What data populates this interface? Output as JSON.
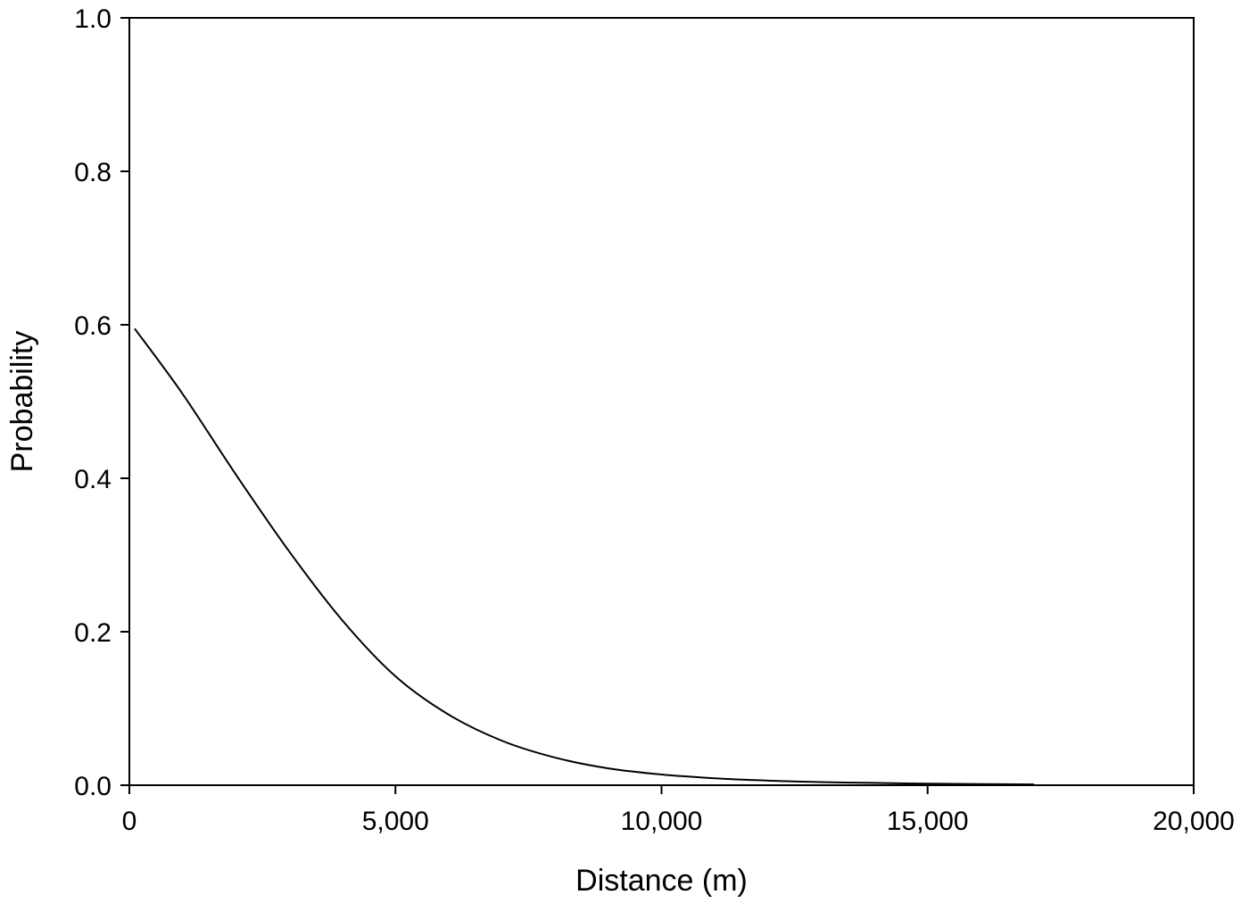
{
  "chart_data": {
    "type": "line",
    "title": "",
    "xlabel": "Distance (m)",
    "ylabel": "Probability",
    "xlim": [
      0,
      20000
    ],
    "ylim": [
      0,
      1.0
    ],
    "grid": false,
    "legend": "none",
    "x_ticks": [
      {
        "value": 0,
        "label": "0"
      },
      {
        "value": 5000,
        "label": "5,000"
      },
      {
        "value": 10000,
        "label": "10,000"
      },
      {
        "value": 15000,
        "label": "15,000"
      },
      {
        "value": 20000,
        "label": "20,000"
      }
    ],
    "y_ticks": [
      {
        "value": 0,
        "label": "0.0"
      },
      {
        "value": 0.2,
        "label": "0.2"
      },
      {
        "value": 0.4,
        "label": "0.4"
      },
      {
        "value": 0.6,
        "label": "0.6"
      },
      {
        "value": 0.8,
        "label": "0.8"
      },
      {
        "value": 1.0,
        "label": "1.0"
      }
    ],
    "series": [
      {
        "color": "#000000",
        "x": [
          100,
          1000,
          2000,
          3000,
          4000,
          5000,
          6000,
          7000,
          8000,
          9000,
          10000,
          11000,
          12000,
          13000,
          14000,
          15000,
          16000,
          17000
        ],
        "y": [
          0.595,
          0.51,
          0.405,
          0.305,
          0.215,
          0.142,
          0.092,
          0.058,
          0.036,
          0.022,
          0.014,
          0.009,
          0.006,
          0.004,
          0.003,
          0.002,
          0.0015,
          0.001
        ]
      }
    ]
  }
}
